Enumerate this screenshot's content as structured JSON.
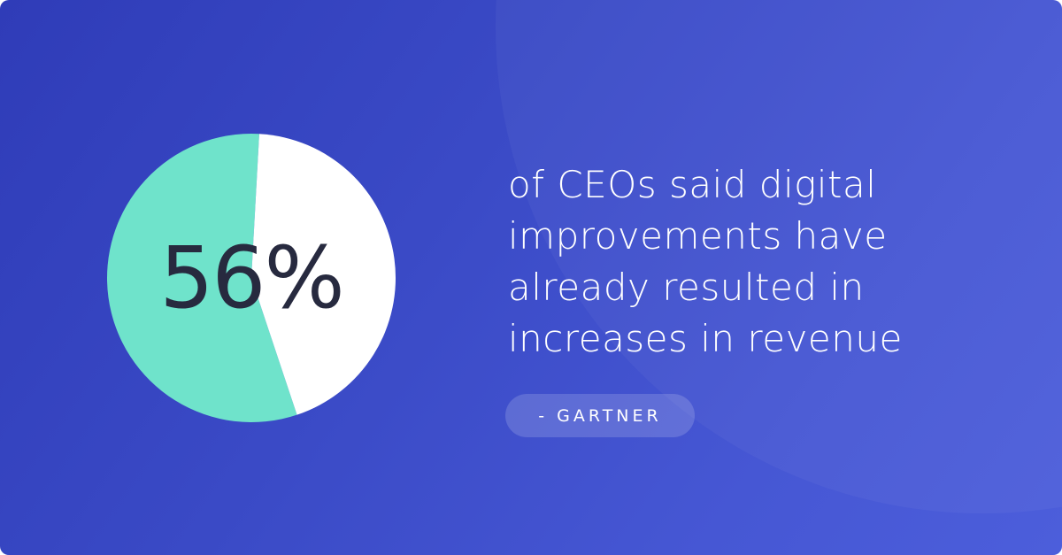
{
  "colors": {
    "background": "#3642c2",
    "highlight_slice": "#6fe3cb",
    "remaining_slice": "#ffffff",
    "stat_text": "#272a3f",
    "body_text": "#ffffff"
  },
  "chart_data": {
    "type": "pie",
    "title": "",
    "slices": [
      {
        "name": "",
        "value": 56,
        "color": "#6fe3cb"
      },
      {
        "name": "",
        "value": 44,
        "color": "#ffffff"
      }
    ],
    "center_label": "56%",
    "legend": "none"
  },
  "statement": {
    "lines": [
      "of CEOs said digital",
      "improvements have",
      "already resulted in",
      "increases in revenue"
    ]
  },
  "source": {
    "label": "- GARTNER"
  }
}
